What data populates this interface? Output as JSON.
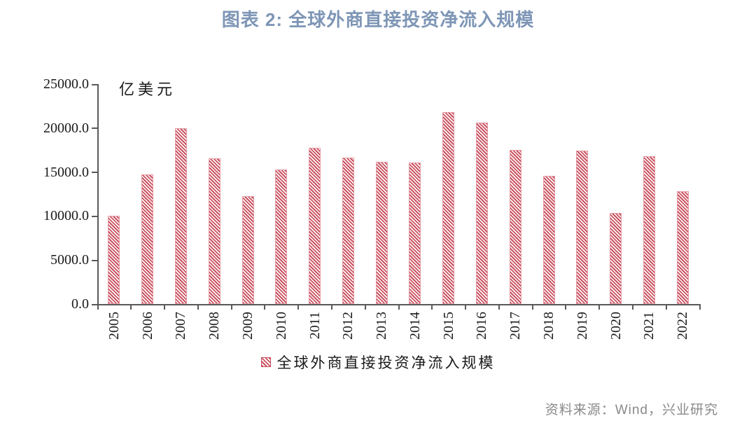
{
  "title": "图表 2: 全球外商直接投资净流入规模",
  "unit_label": "亿美元",
  "legend": {
    "label": "全球外商直接投资净流入规模",
    "marker_icon": "red-diagonal-hatch-square"
  },
  "source": "资料来源：Wind，兴业研究",
  "colors": {
    "title": "#7E96B6",
    "bar_stripe": "#C9515F",
    "bar_border": "#E59AA4",
    "axis": "#595959",
    "tick_text": "#1A1A1A",
    "source_text": "#8A8A8A"
  },
  "chart_data": {
    "type": "bar",
    "title": "全球外商直接投资净流入规模",
    "categories": [
      "2005",
      "2006",
      "2007",
      "2008",
      "2009",
      "2010",
      "2011",
      "2012",
      "2013",
      "2014",
      "2015",
      "2016",
      "2017",
      "2018",
      "2019",
      "2020",
      "2021",
      "2022"
    ],
    "values": [
      10000,
      14700,
      20000,
      16550,
      12300,
      15250,
      17750,
      16650,
      16150,
      16100,
      21800,
      20650,
      17500,
      14550,
      17450,
      10350,
      16800,
      12850
    ],
    "xlabel": "",
    "ylabel": "亿美元",
    "ylim": [
      0,
      25000
    ],
    "y_ticks": [
      0,
      5000,
      10000,
      15000,
      20000,
      25000
    ],
    "y_tick_labels": [
      "0.0",
      "5000.0",
      "10000.0",
      "15000.0",
      "20000.0",
      "25000.0"
    ],
    "grid": false,
    "legend_position": "bottom",
    "bar_fill": "diagonal-hatch",
    "x_tick_label_rotation": 90
  }
}
